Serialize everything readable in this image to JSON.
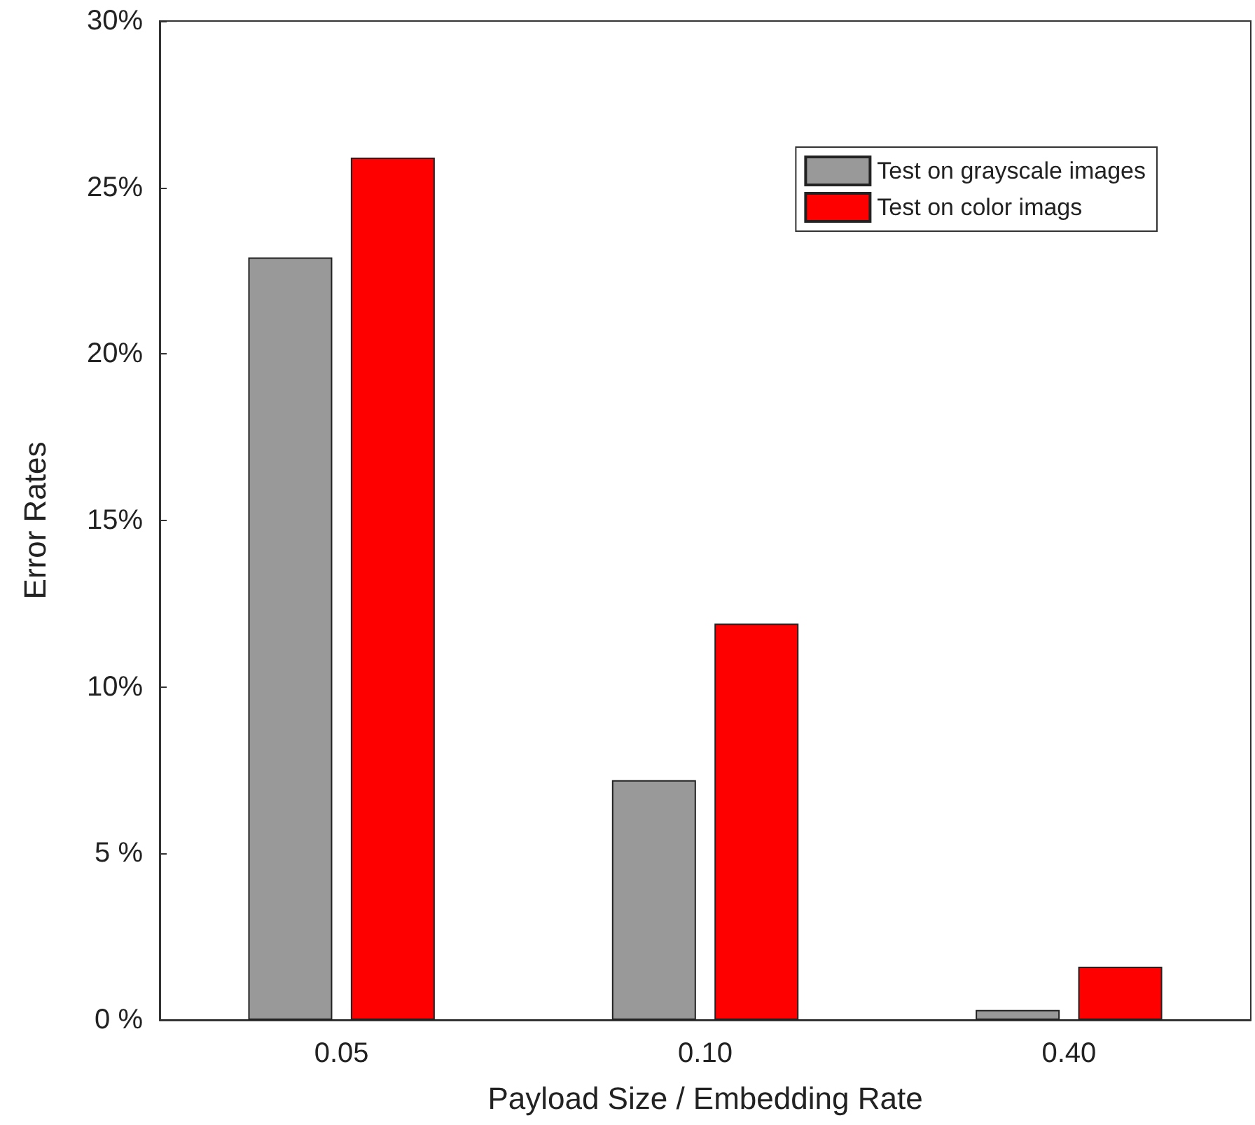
{
  "chart_data": {
    "type": "bar",
    "xlabel": "Payload Size / Embedding Rate",
    "ylabel": "Error Rates",
    "categories": [
      "0.05",
      "0.10",
      "0.40"
    ],
    "series": [
      {
        "name": "Test on grayscale images",
        "color": "#999999",
        "values": [
          22.9,
          7.2,
          0.3
        ]
      },
      {
        "name": "Test on color imags",
        "color": "#ff0000",
        "values": [
          25.9,
          11.9,
          1.6
        ]
      }
    ],
    "ylim": [
      0,
      30
    ],
    "yticks": [
      {
        "value": 0,
        "label": "0 %"
      },
      {
        "value": 5,
        "label": "5 %"
      },
      {
        "value": 10,
        "label": "10%"
      },
      {
        "value": 15,
        "label": "15%"
      },
      {
        "value": 20,
        "label": "20%"
      },
      {
        "value": 25,
        "label": "25%"
      },
      {
        "value": 30,
        "label": "30%"
      }
    ],
    "grid": false,
    "legend": "top right"
  }
}
